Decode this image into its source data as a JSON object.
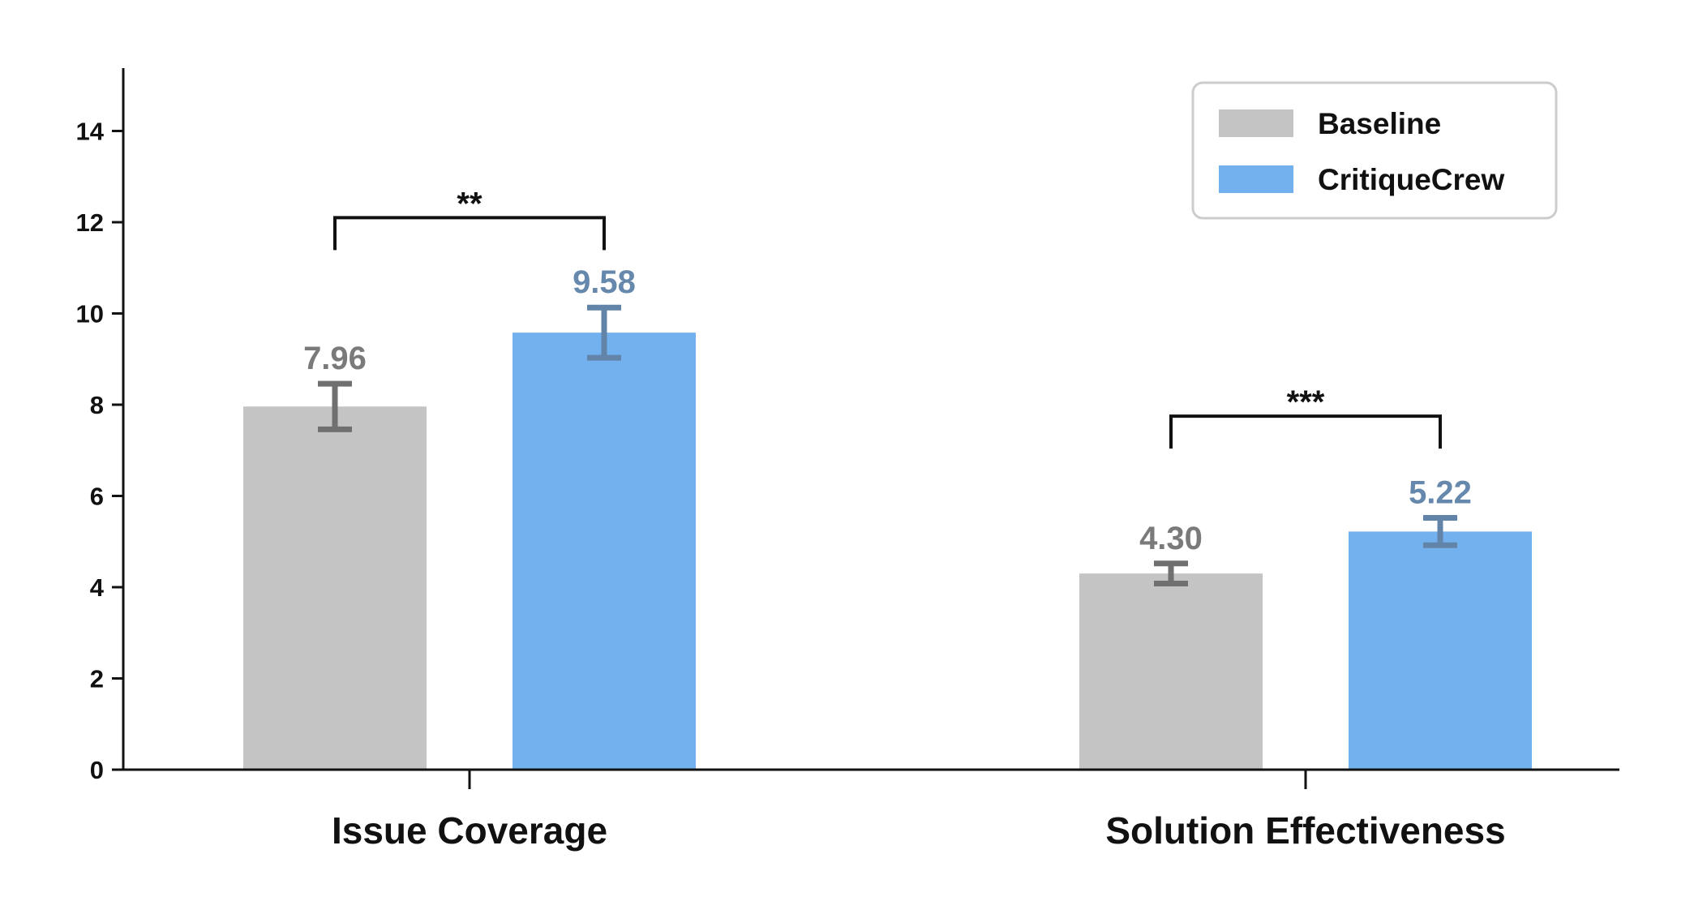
{
  "chart_data": {
    "type": "bar",
    "categories": [
      "Issue Coverage",
      "Solution Effectiveness"
    ],
    "series": [
      {
        "name": "Baseline",
        "values": [
          7.96,
          4.3
        ],
        "errors": [
          0.5,
          0.22
        ],
        "value_labels": [
          "7.96",
          "4.30"
        ]
      },
      {
        "name": "CritiqueCrew",
        "values": [
          9.58,
          5.22
        ],
        "errors": [
          0.55,
          0.3
        ],
        "value_labels": [
          "9.58",
          "5.22"
        ]
      }
    ],
    "ylim": [
      0,
      15
    ],
    "yticks": [
      0,
      2,
      4,
      6,
      8,
      10,
      12,
      14
    ],
    "ytick_labels": [
      "0",
      "2",
      "4",
      "6",
      "8",
      "10",
      "12",
      "14"
    ],
    "xlabel": "",
    "ylabel": "",
    "significance": [
      {
        "category_index": 0,
        "label": "**",
        "bracket_y": 12.1
      },
      {
        "category_index": 1,
        "label": "***",
        "bracket_y": 7.75
      }
    ],
    "legend": {
      "position": "top-right",
      "entries": [
        "Baseline",
        "CritiqueCrew"
      ]
    },
    "grid": false
  },
  "colors": {
    "baseline_bar": "#c4c4c4",
    "critiquecrew_bar": "#72b0ee",
    "baseline_error": "#707070",
    "critiquecrew_error": "#6284a8",
    "baseline_value_text": "#7a7a7a",
    "critiquecrew_value_text": "#6688ad",
    "axis": "#111111"
  }
}
